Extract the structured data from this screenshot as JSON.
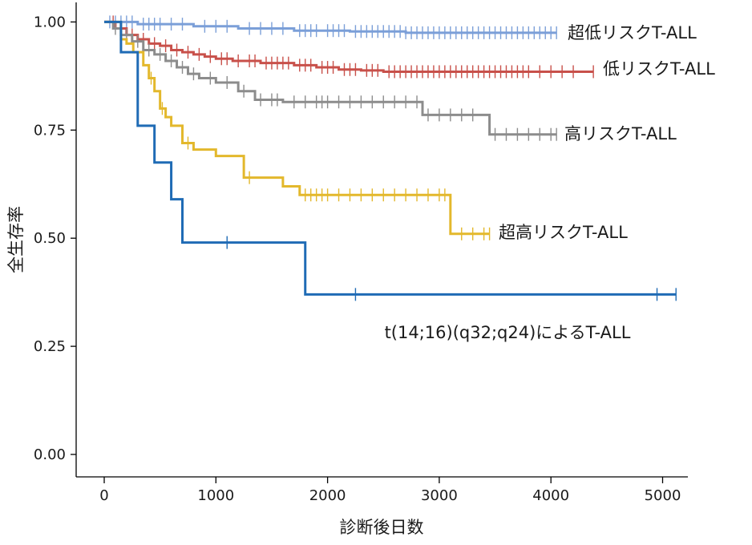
{
  "chart_data": {
    "type": "line",
    "subtype": "kaplan-meier",
    "title": "",
    "xlabel": "診断後日数",
    "ylabel": "全生存率",
    "xlim": [
      -50,
      5250
    ],
    "ylim": [
      -0.05,
      1.05
    ],
    "xticks": [
      0,
      1000,
      2000,
      3000,
      4000,
      5000
    ],
    "xtick_labels": [
      "0",
      "1000",
      "2000",
      "3000",
      "4000",
      "5000"
    ],
    "yticks": [
      0,
      0.25,
      0.5,
      0.75,
      1.0
    ],
    "ytick_labels": [
      "0.00",
      "0.25",
      "0.50",
      "0.75",
      "1.00"
    ],
    "grid": false,
    "legend": "none (direct labels at line ends)",
    "series": [
      {
        "name": "超低リスクT-ALL",
        "color": "#7b9fd8",
        "steps": [
          [
            0,
            1.0
          ],
          [
            300,
            0.995
          ],
          [
            800,
            0.99
          ],
          [
            1200,
            0.985
          ],
          [
            1700,
            0.98
          ],
          [
            2200,
            0.978
          ],
          [
            2700,
            0.975
          ],
          [
            4050,
            0.975
          ]
        ],
        "censors": [
          50,
          100,
          150,
          200,
          250,
          350,
          400,
          450,
          500,
          600,
          700,
          900,
          1000,
          1100,
          1300,
          1400,
          1500,
          1600,
          1750,
          1800,
          1850,
          1900,
          2000,
          2050,
          2100,
          2150,
          2250,
          2300,
          2350,
          2400,
          2450,
          2500,
          2550,
          2600,
          2650,
          2700,
          2750,
          2800,
          2850,
          2900,
          2950,
          3000,
          3050,
          3100,
          3150,
          3200,
          3250,
          3300,
          3350,
          3400,
          3450,
          3500,
          3550,
          3600,
          3650,
          3700,
          3750,
          3800,
          3850,
          3900,
          3950,
          4000,
          4050
        ]
      },
      {
        "name": "低リスクT-ALL",
        "color": "#c8504a",
        "steps": [
          [
            0,
            1.0
          ],
          [
            100,
            0.985
          ],
          [
            200,
            0.97
          ],
          [
            300,
            0.96
          ],
          [
            400,
            0.95
          ],
          [
            500,
            0.945
          ],
          [
            600,
            0.935
          ],
          [
            700,
            0.93
          ],
          [
            800,
            0.925
          ],
          [
            900,
            0.92
          ],
          [
            1000,
            0.915
          ],
          [
            1150,
            0.91
          ],
          [
            1400,
            0.905
          ],
          [
            1700,
            0.9
          ],
          [
            1900,
            0.895
          ],
          [
            2100,
            0.89
          ],
          [
            2300,
            0.888
          ],
          [
            2500,
            0.885
          ],
          [
            4380,
            0.885
          ]
        ],
        "censors": [
          80,
          150,
          250,
          350,
          450,
          550,
          650,
          750,
          850,
          950,
          1050,
          1100,
          1200,
          1300,
          1350,
          1450,
          1500,
          1550,
          1600,
          1650,
          1750,
          1800,
          1850,
          1950,
          2000,
          2050,
          2150,
          2200,
          2250,
          2350,
          2400,
          2450,
          2550,
          2600,
          2650,
          2700,
          2750,
          2800,
          2850,
          2900,
          2950,
          3000,
          3050,
          3100,
          3150,
          3200,
          3250,
          3300,
          3350,
          3400,
          3450,
          3500,
          3550,
          3600,
          3650,
          3700,
          3750,
          3800,
          3900,
          4000,
          4100,
          4200,
          4380
        ]
      },
      {
        "name": "高リスクT-ALL",
        "color": "#8c8c8c",
        "steps": [
          [
            0,
            1.0
          ],
          [
            80,
            0.985
          ],
          [
            150,
            0.97
          ],
          [
            250,
            0.955
          ],
          [
            350,
            0.935
          ],
          [
            450,
            0.925
          ],
          [
            550,
            0.91
          ],
          [
            650,
            0.895
          ],
          [
            750,
            0.88
          ],
          [
            850,
            0.87
          ],
          [
            1000,
            0.86
          ],
          [
            1200,
            0.84
          ],
          [
            1350,
            0.82
          ],
          [
            1600,
            0.815
          ],
          [
            2850,
            0.785
          ],
          [
            3450,
            0.74
          ],
          [
            4050,
            0.74
          ]
        ],
        "censors": [
          100,
          200,
          300,
          400,
          500,
          600,
          700,
          800,
          950,
          1100,
          1250,
          1400,
          1500,
          1550,
          1700,
          1800,
          1900,
          1950,
          2000,
          2100,
          2200,
          2300,
          2400,
          2500,
          2600,
          2700,
          2800,
          2900,
          3000,
          3100,
          3200,
          3300,
          3500,
          3600,
          3700,
          3800,
          3900,
          4000,
          4050
        ]
      },
      {
        "name": "超高リスクT-ALL",
        "color": "#e3b82c",
        "steps": [
          [
            0,
            1.0
          ],
          [
            150,
            0.96
          ],
          [
            200,
            0.95
          ],
          [
            260,
            0.93
          ],
          [
            350,
            0.9
          ],
          [
            400,
            0.87
          ],
          [
            450,
            0.84
          ],
          [
            500,
            0.8
          ],
          [
            550,
            0.78
          ],
          [
            600,
            0.76
          ],
          [
            700,
            0.72
          ],
          [
            800,
            0.705
          ],
          [
            1000,
            0.69
          ],
          [
            1250,
            0.64
          ],
          [
            1600,
            0.62
          ],
          [
            1750,
            0.6
          ],
          [
            3100,
            0.51
          ],
          [
            3450,
            0.51
          ]
        ],
        "censors": [
          420,
          520,
          750,
          1300,
          1800,
          1850,
          1900,
          1950,
          2000,
          2100,
          2200,
          2300,
          2400,
          2500,
          2600,
          2700,
          2800,
          2900,
          3000,
          3050,
          3200,
          3300,
          3400,
          3450
        ]
      },
      {
        "name": "t(14;16)(q32;q24)によるT-ALL",
        "color": "#1f6bb5",
        "steps": [
          [
            0,
            1.0
          ],
          [
            150,
            0.93
          ],
          [
            300,
            0.76
          ],
          [
            450,
            0.675
          ],
          [
            600,
            0.59
          ],
          [
            700,
            0.49
          ],
          [
            1800,
            0.37
          ],
          [
            5120,
            0.37
          ]
        ],
        "censors": [
          1100,
          2250,
          4950,
          5120
        ]
      }
    ]
  }
}
